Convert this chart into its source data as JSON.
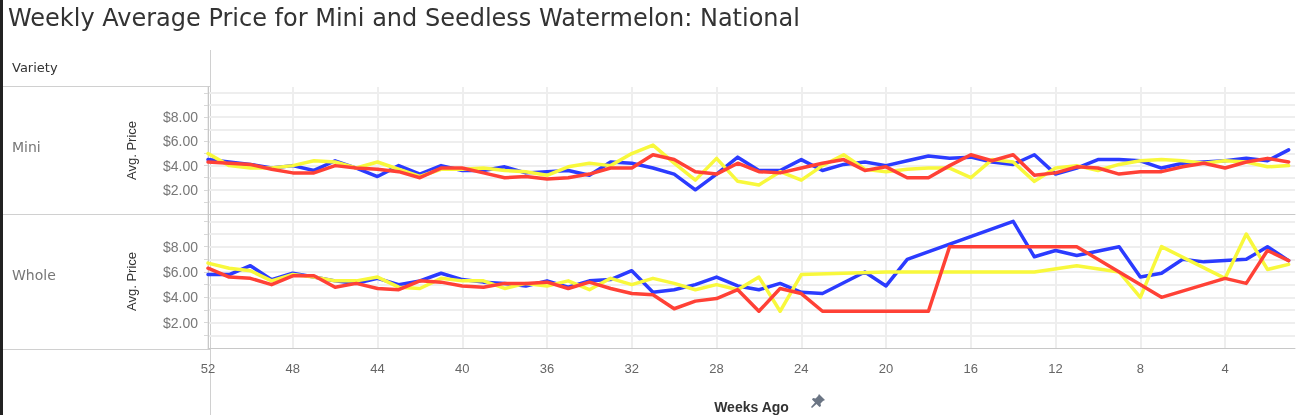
{
  "chart_data": [
    {
      "type": "line",
      "title": "Weekly Average Price for Mini and Seedless Watermelon: National",
      "annotations": [
        "Variety",
        "Mini"
      ],
      "ylabel": "Avg. Price",
      "xlim": [
        52,
        0.7
      ],
      "xticks": [
        52,
        48,
        44,
        40,
        36,
        32,
        28,
        24,
        20,
        16,
        12,
        8,
        4
      ],
      "ylim": [
        0,
        10.5
      ],
      "yticks": [
        {
          "value": 1,
          "label": null
        },
        {
          "value": 2,
          "label": "$2.00"
        },
        {
          "value": 3,
          "label": null
        },
        {
          "value": 4,
          "label": "$4.00"
        },
        {
          "value": 5,
          "label": null
        },
        {
          "value": 6,
          "label": "$6.00"
        },
        {
          "value": 7,
          "label": null
        },
        {
          "value": 8,
          "label": "$8.00"
        },
        {
          "value": 9,
          "label": null
        },
        {
          "value": 10,
          "label": null
        }
      ],
      "grid": true,
      "tick_labels": "y",
      "marker": "none",
      "x": [
        52,
        51,
        50,
        49,
        48,
        47,
        46,
        45,
        44,
        43,
        42,
        41,
        40,
        39,
        38,
        37,
        36,
        35,
        34,
        33,
        32,
        31,
        30,
        29,
        28,
        27,
        26,
        25,
        24,
        23,
        22,
        21,
        20,
        19,
        18,
        17,
        16,
        15,
        14,
        13,
        12,
        11,
        10,
        9,
        8,
        7,
        6,
        5,
        4,
        3,
        2,
        1
      ],
      "series": [
        {
          "color": "#2b3bff",
          "values": [
            4.5,
            4.3,
            4.1,
            3.8,
            4.0,
            3.6,
            4.4,
            3.8,
            3.1,
            4.0,
            3.3,
            4.0,
            3.6,
            3.6,
            3.9,
            3.4,
            3.5,
            3.6,
            3.2,
            4.3,
            4.2,
            3.8,
            3.3,
            2.0,
            3.3,
            4.7,
            3.6,
            3.6,
            4.5,
            3.6,
            4.1,
            4.3,
            4.0,
            4.4,
            4.8,
            4.6,
            4.7,
            4.3,
            4.1,
            4.9,
            3.3,
            3.8,
            4.5,
            4.5,
            4.4,
            3.8,
            4.2,
            4.3,
            4.4,
            4.6,
            4.4,
            5.3
          ]
        },
        {
          "color": "#f8f83c",
          "values": [
            5.0,
            4.0,
            3.8,
            3.8,
            4.0,
            4.4,
            4.3,
            3.8,
            4.3,
            3.7,
            3.1,
            3.7,
            3.7,
            3.8,
            3.6,
            3.5,
            3.2,
            3.9,
            4.2,
            4.0,
            5.0,
            5.7,
            4.2,
            2.8,
            4.6,
            2.7,
            2.4,
            3.5,
            2.8,
            4.0,
            4.9,
            3.7,
            3.5,
            3.7,
            3.8,
            3.8,
            3.0,
            4.5,
            4.3,
            2.7,
            3.8,
            4.0,
            3.6,
            4.1,
            4.4,
            4.5,
            4.4,
            4.2,
            4.4,
            4.3,
            3.9,
            4.0
          ]
        },
        {
          "color": "#ff4136",
          "values": [
            4.3,
            4.2,
            4.1,
            3.7,
            3.4,
            3.4,
            4.0,
            3.8,
            3.7,
            3.5,
            3.0,
            3.8,
            3.8,
            3.4,
            3.0,
            3.1,
            2.9,
            3.0,
            3.3,
            3.8,
            3.8,
            4.9,
            4.5,
            3.5,
            3.3,
            4.2,
            3.5,
            3.4,
            3.8,
            4.2,
            4.5,
            3.6,
            3.9,
            3.0,
            3.0,
            4.0,
            4.9,
            4.4,
            4.9,
            3.2,
            3.4,
            3.9,
            3.8,
            3.3,
            3.5,
            3.5,
            3.9,
            4.2,
            3.8,
            4.3,
            4.6,
            4.3
          ]
        }
      ]
    },
    {
      "type": "line",
      "annotations": [
        "Whole"
      ],
      "ylabel": "Avg. Price",
      "xlabel": "Weeks Ago",
      "xlim": [
        52,
        0.7
      ],
      "xticks": [
        52,
        48,
        44,
        40,
        36,
        32,
        28,
        24,
        20,
        16,
        12,
        8,
        4
      ],
      "ylim": [
        0,
        10.5
      ],
      "yticks": [
        {
          "value": 1,
          "label": null
        },
        {
          "value": 2,
          "label": "$2.00"
        },
        {
          "value": 3,
          "label": null
        },
        {
          "value": 4,
          "label": "$4.00"
        },
        {
          "value": 5,
          "label": null
        },
        {
          "value": 6,
          "label": "$6.00"
        },
        {
          "value": 7,
          "label": null
        },
        {
          "value": 8,
          "label": "$8.00"
        },
        {
          "value": 9,
          "label": null
        },
        {
          "value": 10,
          "label": null
        }
      ],
      "grid": true,
      "marker": "none",
      "series": [
        {
          "color": "#2b3bff",
          "x": [
            52,
            51,
            50,
            49,
            48,
            47,
            46,
            45,
            44,
            43,
            42,
            41,
            40,
            39,
            38,
            37,
            36,
            35,
            34,
            33,
            32,
            31,
            30,
            29,
            28,
            27,
            26,
            25,
            24,
            23,
            21,
            20,
            19,
            14,
            13,
            12,
            11,
            9,
            8,
            7,
            6,
            5,
            3,
            2,
            1
          ],
          "values": [
            5.8,
            5.8,
            6.5,
            5.4,
            5.9,
            5.6,
            5.3,
            5.1,
            5.5,
            5.0,
            5.3,
            5.9,
            5.4,
            5.2,
            5.1,
            4.9,
            5.3,
            4.8,
            5.3,
            5.4,
            6.1,
            4.4,
            4.6,
            5.0,
            5.6,
            4.9,
            4.6,
            5.1,
            4.4,
            4.3,
            6.0,
            4.9,
            7.0,
            10.0,
            7.2,
            7.7,
            7.3,
            8.0,
            5.6,
            5.9,
            7.0,
            6.8,
            7.0,
            8.0,
            6.9
          ]
        },
        {
          "color": "#f8f83c",
          "x": [
            52,
            51,
            50,
            49,
            48,
            47,
            46,
            45,
            44,
            43,
            42,
            41,
            40,
            39,
            38,
            37,
            36,
            35,
            34,
            33,
            32,
            31,
            30,
            29,
            28,
            27,
            26,
            25,
            24,
            20,
            13,
            11,
            9,
            8,
            7,
            4,
            3,
            2,
            1
          ],
          "values": [
            6.7,
            6.3,
            6.1,
            5.3,
            5.8,
            5.6,
            5.3,
            5.3,
            5.6,
            4.8,
            4.7,
            5.5,
            5.3,
            5.3,
            4.7,
            5.1,
            4.9,
            5.3,
            4.6,
            5.5,
            5.0,
            5.5,
            5.1,
            4.6,
            5.0,
            4.6,
            5.6,
            2.9,
            5.8,
            6.0,
            6.0,
            6.5,
            6.0,
            4.0,
            8.0,
            5.5,
            9.0,
            6.2,
            6.6
          ]
        },
        {
          "color": "#ff4136",
          "x": [
            52,
            51,
            50,
            49,
            48,
            47,
            46,
            45,
            44,
            43,
            42,
            41,
            40,
            39,
            38,
            37,
            36,
            35,
            34,
            33,
            32,
            31,
            30,
            29,
            28,
            27,
            26,
            25,
            24,
            23,
            18,
            17,
            11,
            7,
            4,
            3,
            2,
            1
          ],
          "values": [
            6.3,
            5.6,
            5.5,
            5.0,
            5.7,
            5.7,
            4.8,
            5.1,
            4.7,
            4.6,
            5.3,
            5.2,
            4.9,
            4.8,
            5.1,
            5.1,
            5.2,
            4.7,
            5.2,
            4.7,
            4.3,
            4.2,
            3.1,
            3.7,
            3.9,
            4.6,
            2.9,
            4.7,
            4.3,
            2.9,
            2.9,
            8.0,
            8.0,
            4.0,
            5.5,
            5.1,
            7.7,
            6.9
          ]
        }
      ]
    }
  ]
}
